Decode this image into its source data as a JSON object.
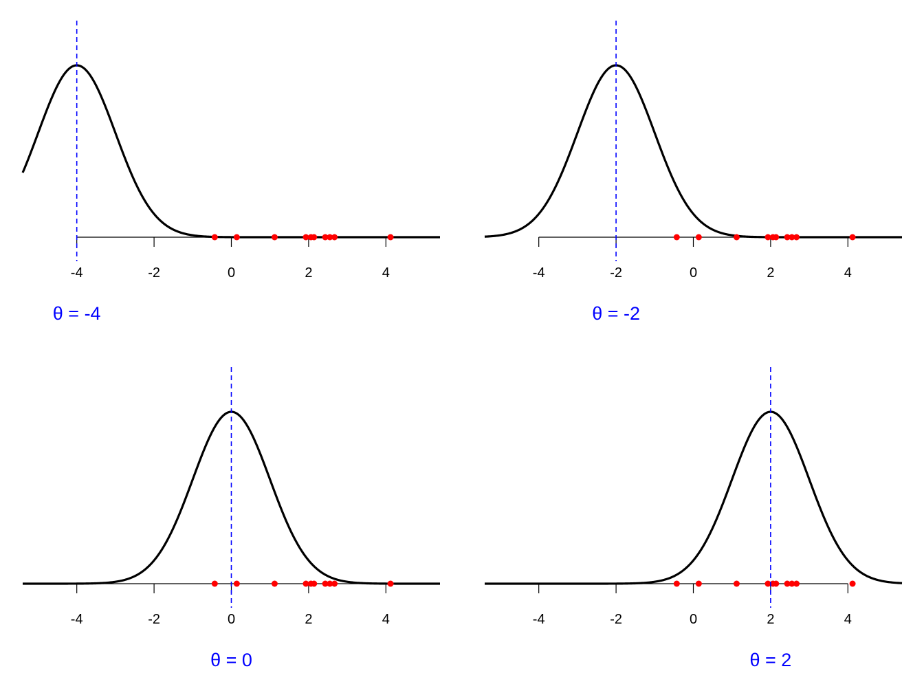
{
  "chart_data": [
    {
      "type": "line",
      "title": "θ = -4",
      "theta": -4,
      "sd": 1,
      "xlim": [
        -5.4,
        5.4
      ],
      "xticks": [
        -4,
        -2,
        0,
        2,
        4
      ],
      "xticklabels": [
        "-4",
        "-2",
        "0",
        "2",
        "4"
      ],
      "observations": [
        -0.43,
        0.14,
        1.12,
        1.93,
        2.06,
        2.14,
        2.43,
        2.55,
        2.67,
        4.12
      ],
      "series": [
        {
          "values_function": "normal_density",
          "mean": -4,
          "sd": 1
        }
      ]
    },
    {
      "type": "line",
      "title": "θ = -2",
      "theta": -2,
      "sd": 1,
      "xlim": [
        -5.4,
        5.4
      ],
      "xticks": [
        -4,
        -2,
        0,
        2,
        4
      ],
      "xticklabels": [
        "-4",
        "-2",
        "0",
        "2",
        "4"
      ],
      "observations": [
        -0.43,
        0.14,
        1.12,
        1.93,
        2.06,
        2.14,
        2.43,
        2.55,
        2.67,
        4.12
      ],
      "series": [
        {
          "values_function": "normal_density",
          "mean": -2,
          "sd": 1
        }
      ]
    },
    {
      "type": "line",
      "title": "θ = 0",
      "theta": 0,
      "sd": 1,
      "xlim": [
        -5.4,
        5.4
      ],
      "xticks": [
        -4,
        -2,
        0,
        2,
        4
      ],
      "xticklabels": [
        "-4",
        "-2",
        "0",
        "2",
        "4"
      ],
      "observations": [
        -0.43,
        0.14,
        1.12,
        1.93,
        2.06,
        2.14,
        2.43,
        2.55,
        2.67,
        4.12
      ],
      "series": [
        {
          "values_function": "normal_density",
          "mean": 0,
          "sd": 1
        }
      ]
    },
    {
      "type": "line",
      "title": "θ = 2",
      "theta": 2,
      "sd": 1,
      "xlim": [
        -5.4,
        5.4
      ],
      "xticks": [
        -4,
        -2,
        0,
        2,
        4
      ],
      "xticklabels": [
        "-4",
        "-2",
        "0",
        "2",
        "4"
      ],
      "observations": [
        -0.43,
        0.14,
        1.12,
        1.93,
        2.06,
        2.14,
        2.43,
        2.55,
        2.67,
        4.12
      ],
      "series": [
        {
          "values_function": "normal_density",
          "mean": 2,
          "sd": 1
        }
      ]
    }
  ],
  "colors": {
    "curve": "#000000",
    "theta_line": "#0000ff",
    "theta_label": "#0000ff",
    "points": "#ff0000",
    "axis": "#000000"
  }
}
